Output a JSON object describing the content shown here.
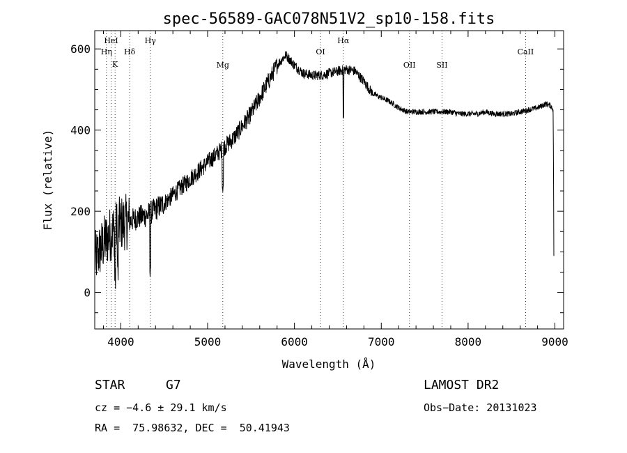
{
  "chart_data": {
    "type": "line",
    "title": "spec-56589-GAC078N51V2_sp10-158.fits",
    "xlabel": "Wavelength (Å)",
    "ylabel": "Flux (relative)",
    "xlim": [
      3700,
      9100
    ],
    "ylim": [
      -90,
      645
    ],
    "x_ticks": [
      4000,
      5000,
      6000,
      7000,
      8000,
      9000
    ],
    "y_ticks": [
      0,
      200,
      400,
      600
    ],
    "grid": false,
    "series": [
      {
        "x": [
          3700,
          3800,
          3900,
          4000,
          4100,
          4200,
          4300,
          4400,
          4500,
          4600,
          4700,
          4800,
          4900,
          5000,
          5100,
          5200,
          5300,
          5400,
          5500,
          5600,
          5700,
          5800,
          5900,
          6000,
          6100,
          6200,
          6300,
          6400,
          6500,
          6600,
          6700,
          6800,
          6900,
          7000,
          7100,
          7200,
          7300,
          7400,
          7500,
          7600,
          7700,
          7800,
          7900,
          8000,
          8100,
          8200,
          8300,
          8400,
          8500,
          8600,
          8700,
          8800,
          8900,
          8950,
          8980,
          8990
        ],
        "values": [
          80,
          120,
          150,
          170,
          175,
          185,
          190,
          205,
          220,
          240,
          260,
          280,
          300,
          320,
          340,
          360,
          380,
          410,
          440,
          480,
          520,
          560,
          585,
          560,
          540,
          535,
          535,
          540,
          545,
          550,
          545,
          520,
          490,
          480,
          470,
          455,
          445,
          445,
          445,
          445,
          445,
          445,
          440,
          440,
          440,
          445,
          440,
          440,
          440,
          445,
          450,
          455,
          465,
          460,
          450,
          0
        ]
      }
    ],
    "spectral_lines": [
      {
        "name": "HeI",
        "wavelength": 3889
      },
      {
        "name": "Hη",
        "wavelength": 3835
      },
      {
        "name": "K",
        "wavelength": 3934
      },
      {
        "name": "Hδ",
        "wavelength": 4102
      },
      {
        "name": "Hγ",
        "wavelength": 4340
      },
      {
        "name": "Mg",
        "wavelength": 5175
      },
      {
        "name": "OI",
        "wavelength": 6300
      },
      {
        "name": "Hα",
        "wavelength": 6563
      },
      {
        "name": "OII",
        "wavelength": 7325
      },
      {
        "name": "SII",
        "wavelength": 7700
      },
      {
        "name": "CaII",
        "wavelength": 8662
      }
    ]
  },
  "info": {
    "object_class": "STAR",
    "subclass": "G7",
    "survey": "LAMOST DR2",
    "redshift_line": "cz = −4.6 ± 29.1 km/s",
    "obs_date": "Obs−Date: 20131023",
    "coords": "RA =  75.98632, DEC =  50.41943"
  }
}
